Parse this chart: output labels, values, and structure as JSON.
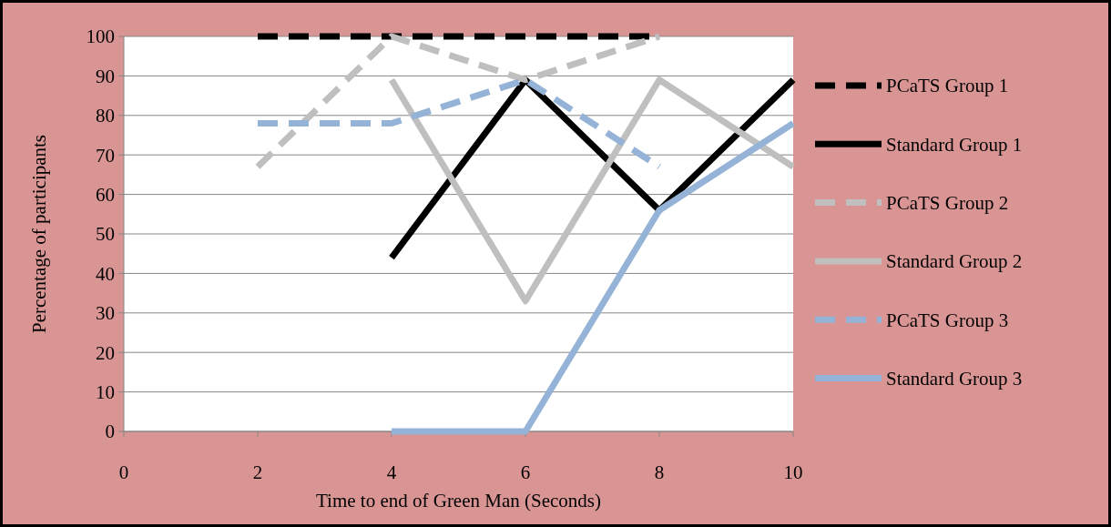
{
  "chart_data": {
    "type": "line",
    "xlabel": "Time to end of Green Man (Seconds)",
    "ylabel": "Percentage of participants",
    "xlim": [
      0,
      10
    ],
    "xticks": [
      0,
      2,
      4,
      6,
      8,
      10
    ],
    "ylim": [
      0,
      100
    ],
    "yticks": [
      0,
      10,
      20,
      30,
      40,
      50,
      60,
      70,
      80,
      90,
      100
    ],
    "grid": "y",
    "legend": "right",
    "series": [
      {
        "name": "PCaTS Group 1",
        "color": "#000000",
        "line_style": "dashed",
        "x": [
          2,
          4,
          6,
          8
        ],
        "values": [
          100,
          100,
          100,
          100
        ]
      },
      {
        "name": "Standard Group 1",
        "color": "#000000",
        "line_style": "solid",
        "x": [
          4,
          6,
          8,
          10
        ],
        "values": [
          44,
          89,
          56,
          89
        ]
      },
      {
        "name": "PCaTS Group 2",
        "color": "#bfbfbf",
        "line_style": "dashed",
        "x": [
          2,
          4,
          6,
          8
        ],
        "values": [
          67,
          100,
          89,
          100
        ]
      },
      {
        "name": "Standard Group 2",
        "color": "#bfbfbf",
        "line_style": "solid",
        "x": [
          4,
          6,
          8,
          10
        ],
        "values": [
          89,
          33,
          89,
          67
        ]
      },
      {
        "name": "PCaTS Group 3",
        "color": "#95b3d7",
        "line_style": "dashed",
        "x": [
          2,
          4,
          6,
          8
        ],
        "values": [
          78,
          78,
          89,
          67
        ]
      },
      {
        "name": "Standard Group 3",
        "color": "#95b3d7",
        "line_style": "solid",
        "x": [
          4,
          6,
          8,
          10
        ],
        "values": [
          0,
          0,
          56,
          78
        ]
      }
    ]
  }
}
